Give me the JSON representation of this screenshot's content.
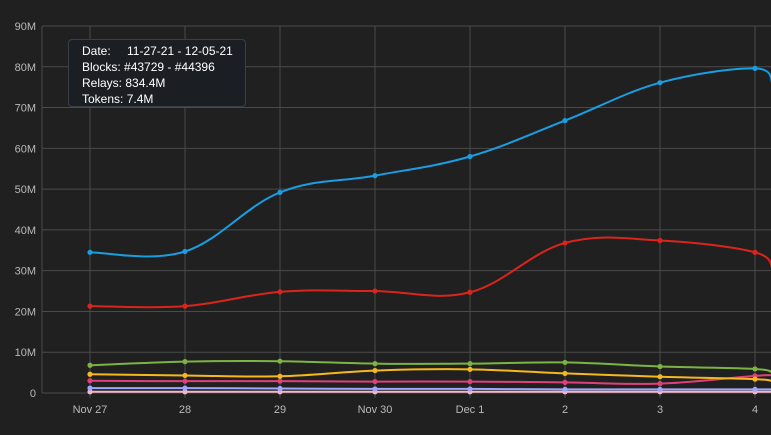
{
  "chart_data": {
    "type": "line",
    "categories": [
      "Nov 27",
      "28",
      "29",
      "Nov 30",
      "Dec 1",
      "2",
      "3",
      "4"
    ],
    "y_tick_labels": [
      "0",
      "10M",
      "20M",
      "30M",
      "40M",
      "50M",
      "60M",
      "70M",
      "80M",
      "90M"
    ],
    "ylim": [
      0,
      90000000
    ],
    "grid": true,
    "series": [
      {
        "color": "#1a9ee2",
        "values": [
          34500000,
          34700000,
          49200000,
          53300000,
          58000000,
          66800000,
          76100000,
          79600000
        ],
        "tail": 75500000
      },
      {
        "color": "#d9251c",
        "values": [
          21300000,
          21300000,
          24800000,
          25000000,
          24700000,
          36800000,
          37400000,
          34500000
        ],
        "tail": 30000000
      },
      {
        "color": "#7cb342",
        "values": [
          6800000,
          7700000,
          7800000,
          7200000,
          7200000,
          7500000,
          6500000,
          5900000
        ],
        "tail": 4800000
      },
      {
        "color": "#f5b81e",
        "values": [
          4600000,
          4300000,
          4100000,
          5500000,
          5800000,
          4800000,
          4000000,
          3400000
        ],
        "tail": 2800000
      },
      {
        "color": "#e0407a",
        "values": [
          3000000,
          2900000,
          2900000,
          2800000,
          2800000,
          2600000,
          2300000,
          4200000
        ],
        "tail": 4300000
      },
      {
        "color": "#9fa4ff",
        "values": [
          1200000,
          1200000,
          1100000,
          1000000,
          1000000,
          900000,
          900000,
          900000
        ],
        "tail": 900000
      },
      {
        "color": "#f3b8c8",
        "values": [
          300000,
          300000,
          300000,
          300000,
          300000,
          300000,
          300000,
          300000
        ],
        "tail": 300000
      }
    ]
  },
  "tooltip": {
    "date_label": "Date:",
    "date_value": "11-27-21 - 12-05-21",
    "blocks_label": "Blocks:",
    "blocks_value": "#43729 - #44396",
    "relays_label": "Relays:",
    "relays_value": "834.4M",
    "tokens_label": "Tokens:",
    "tokens_value": "7.4M"
  }
}
